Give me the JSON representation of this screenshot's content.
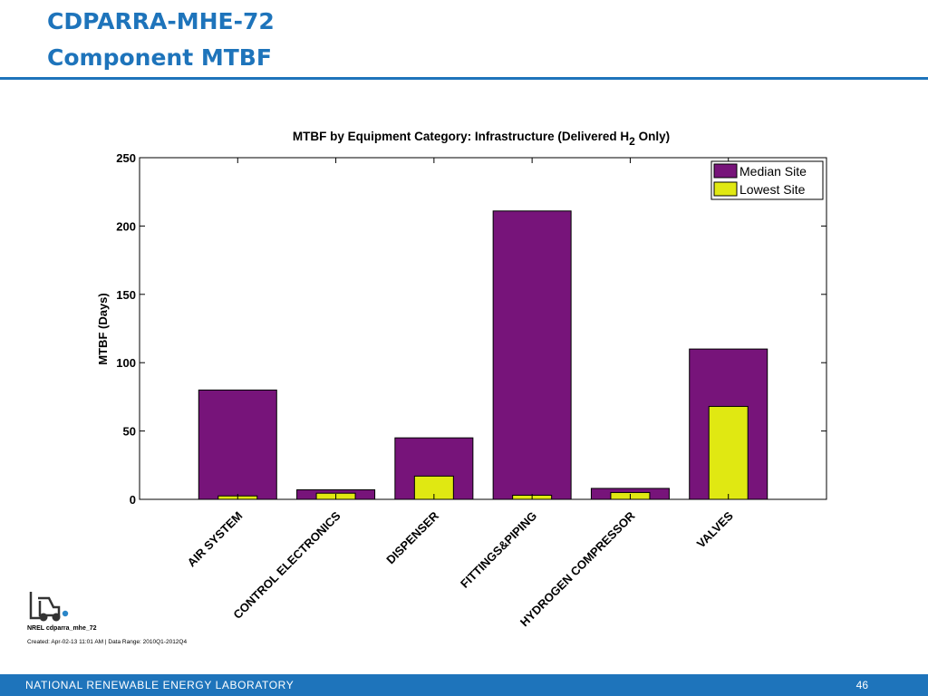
{
  "slide": {
    "title_line1": "CDPARRA-MHE-72",
    "title_line2": "Component MTBF",
    "nrel_tag": "NREL cdparra_mhe_72",
    "created_note": "Created: Apr-02-13 11:01 AM | Data Range: 2010Q1-2012Q4",
    "footer_text": "NATIONAL RENEWABLE ENERGY LABORATORY",
    "page_number": "46",
    "logo_icon": "forklift-icon"
  },
  "colors": {
    "title_blue": "#1e74bb",
    "median_site": "#77147a",
    "lowest_site": "#e0e812"
  },
  "chart_data": {
    "type": "bar",
    "title_main": "MTBF by Equipment Category: Infrastructure (Delivered H",
    "title_sub": "2",
    "title_end": " Only)",
    "xlabel": "",
    "ylabel": "MTBF (Days)",
    "ylim": [
      0,
      250
    ],
    "yticks": [
      0,
      50,
      100,
      150,
      200,
      250
    ],
    "grid": false,
    "legend_position": "top-right",
    "categories": [
      "AIR SYSTEM",
      "CONTROL ELECTRONICS",
      "DISPENSER",
      "FITTINGS&PIPING",
      "HYDROGEN COMPRESSOR",
      "VALVES"
    ],
    "series": [
      {
        "name": "Median Site",
        "values": [
          80,
          7,
          45,
          211,
          8,
          110
        ]
      },
      {
        "name": "Lowest Site",
        "values": [
          2.5,
          4.5,
          17,
          3,
          5,
          68
        ]
      }
    ]
  }
}
